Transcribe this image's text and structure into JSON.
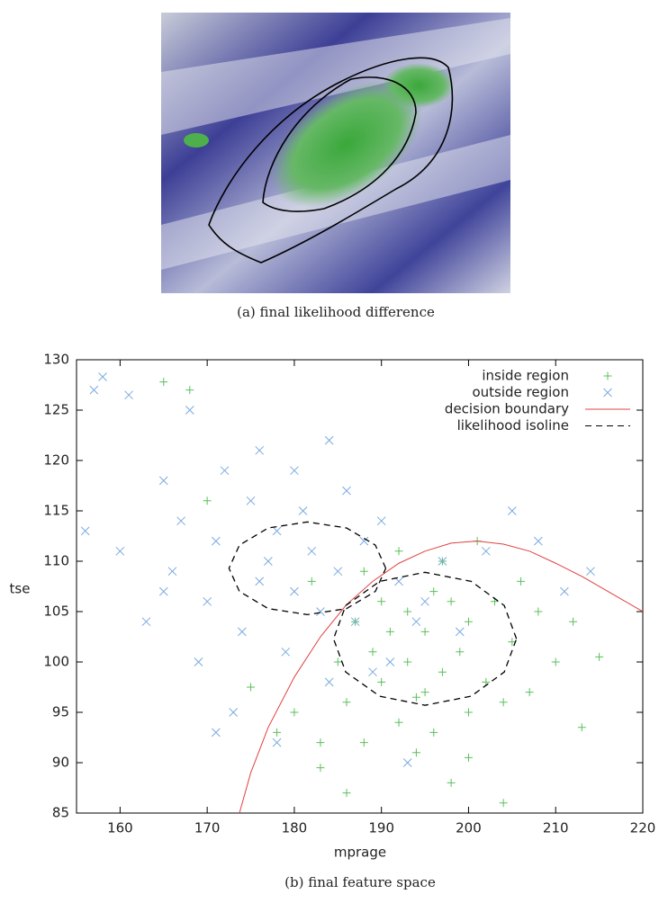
{
  "figure": {
    "caption_a": "(a) final likelihood difference",
    "caption_b": "(b) final feature space"
  },
  "chart_data": {
    "type": "scatter",
    "xlabel": "mprage",
    "ylabel": "tse",
    "xlim": [
      155,
      220
    ],
    "ylim": [
      85,
      130
    ],
    "xticks": [
      160,
      170,
      180,
      190,
      200,
      210,
      220
    ],
    "yticks": [
      85,
      90,
      95,
      100,
      105,
      110,
      115,
      120,
      125,
      130
    ],
    "legend": "top-right",
    "series": [
      {
        "name": "inside region",
        "color": "#5cbf5c",
        "marker": "plus",
        "x": [
          165,
          168,
          175,
          178,
          180,
          182,
          183,
          185,
          186,
          187,
          188,
          189,
          190,
          190,
          191,
          192,
          193,
          193,
          194,
          195,
          195,
          196,
          197,
          197,
          198,
          199,
          200,
          200,
          201,
          202,
          203,
          204,
          205,
          206,
          207,
          208,
          210,
          212,
          213,
          215,
          188,
          192,
          196,
          200,
          204,
          186,
          194,
          198,
          183,
          170
        ],
        "y": [
          127.8,
          127,
          97.5,
          93,
          95,
          108,
          89.5,
          100,
          96,
          104,
          92,
          101,
          98,
          106,
          103,
          94,
          100,
          105,
          91,
          97,
          103,
          107,
          99,
          110,
          88,
          101,
          95,
          104,
          112,
          98,
          106,
          86,
          102,
          108,
          97,
          105,
          100,
          104,
          93.5,
          100.5,
          109,
          111,
          93,
          90.5,
          96,
          87,
          96.5,
          106,
          92,
          116
        ]
      },
      {
        "name": "outside region",
        "color": "#7aaae0",
        "marker": "cross",
        "x": [
          156,
          157,
          158,
          160,
          161,
          163,
          165,
          166,
          167,
          168,
          169,
          170,
          171,
          172,
          173,
          174,
          175,
          176,
          177,
          178,
          179,
          180,
          181,
          182,
          183,
          184,
          185,
          186,
          187,
          188,
          189,
          190,
          191,
          192,
          193,
          195,
          197,
          199,
          202,
          205,
          208,
          211,
          214,
          176,
          180,
          184,
          171,
          178,
          165,
          194
        ],
        "y": [
          113,
          127,
          128.3,
          111,
          126.5,
          104,
          118,
          109,
          114,
          125,
          100,
          106,
          112,
          119,
          95,
          103,
          116,
          108,
          110,
          113,
          101,
          107,
          115,
          111,
          105,
          122,
          109,
          117,
          104,
          112,
          99,
          114,
          100,
          108,
          90,
          106,
          110,
          103,
          111,
          115,
          112,
          107,
          109,
          121,
          119,
          98,
          93,
          92,
          107,
          104
        ]
      },
      {
        "name": "decision boundary",
        "color": "#e04040",
        "marker": "line",
        "dash": false,
        "x": [
          173.7,
          175,
          177,
          180,
          183,
          186,
          189,
          192,
          195,
          198,
          201,
          204,
          207,
          210,
          213,
          216,
          220
        ],
        "y": [
          85,
          89,
          93.5,
          98.5,
          102.5,
          105.7,
          108,
          109.8,
          111,
          111.8,
          112,
          111.7,
          111,
          109.8,
          108.5,
          107,
          105
        ]
      },
      {
        "name": "likelihood isoline",
        "color": "#000000",
        "marker": "line",
        "dash": true,
        "x": [
          190.5,
          189.3,
          186,
          181.5,
          177,
          173.7,
          172.5,
          173.7,
          177,
          181.5,
          186,
          189.3,
          190.5,
          null,
          205.5,
          204.1,
          200.3,
          195,
          189.8,
          185.9,
          184.5,
          185.9,
          189.8,
          195,
          200.3,
          204.1,
          205.5
        ],
        "y": [
          109.3,
          111.6,
          113.3,
          113.9,
          113.3,
          111.6,
          109.3,
          107,
          105.3,
          104.7,
          105.3,
          107,
          109.3,
          null,
          102.3,
          105.6,
          108,
          108.9,
          108,
          105.6,
          102.3,
          99,
          96.6,
          95.7,
          96.6,
          99,
          102.3
        ]
      }
    ]
  }
}
